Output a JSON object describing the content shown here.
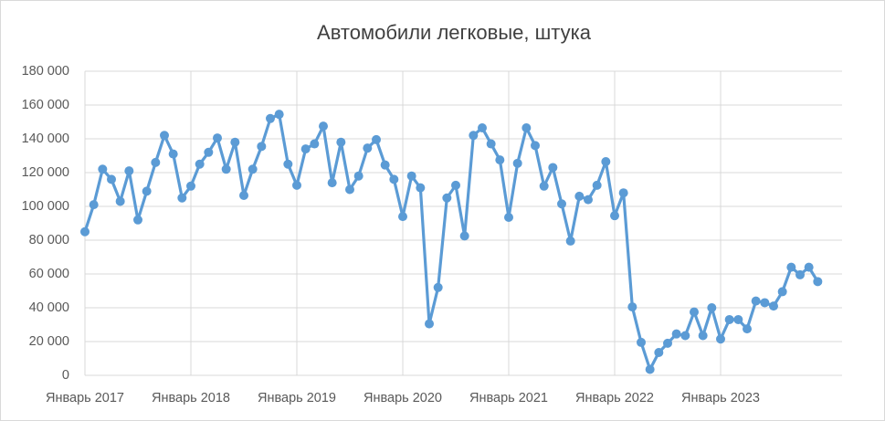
{
  "chart_data": {
    "type": "line",
    "title": "Автомобили легковые, штука",
    "categories": [
      "Январь 2017",
      null,
      null,
      null,
      null,
      null,
      null,
      null,
      null,
      null,
      null,
      null,
      "Январь 2018",
      null,
      null,
      null,
      null,
      null,
      null,
      null,
      null,
      null,
      null,
      null,
      "Январь 2019",
      null,
      null,
      null,
      null,
      null,
      null,
      null,
      null,
      null,
      null,
      null,
      "Январь 2020",
      null,
      null,
      null,
      null,
      null,
      null,
      null,
      null,
      null,
      null,
      null,
      "Январь 2021",
      null,
      null,
      null,
      null,
      null,
      null,
      null,
      null,
      null,
      null,
      null,
      "Январь 2022",
      null,
      null,
      null,
      null,
      null,
      null,
      null,
      null,
      null,
      null,
      null,
      "Январь 2023",
      null,
      null,
      null,
      null,
      null,
      null,
      null,
      null,
      null,
      null,
      null
    ],
    "values": [
      85000,
      101000,
      122000,
      116000,
      103000,
      121000,
      92000,
      109000,
      126000,
      142000,
      131000,
      105000,
      112000,
      125000,
      132000,
      140500,
      122000,
      138000,
      106500,
      122000,
      135500,
      152000,
      154500,
      125000,
      112500,
      134000,
      137000,
      147500,
      114000,
      138000,
      110000,
      118000,
      134500,
      139500,
      124500,
      116000,
      94000,
      118000,
      111000,
      30500,
      52000,
      105000,
      112500,
      82500,
      142000,
      146500,
      137000,
      127500,
      93500,
      125500,
      146500,
      136000,
      112000,
      123000,
      101500,
      79500,
      106000,
      104000,
      112500,
      126500,
      94500,
      108000,
      40500,
      19500,
      3500,
      13500,
      19000,
      24500,
      23500,
      37500,
      23500,
      40000,
      21500,
      33000,
      33000,
      27500,
      44000,
      43000,
      41000,
      49500,
      64000,
      59500,
      64000,
      55500
    ],
    "color": "#5b9bd5",
    "ylim": [
      0,
      180000
    ],
    "yticks": [
      0,
      {
        "value": 20000,
        "label": "20 000"
      },
      {
        "value": 40000,
        "label": "40 000"
      },
      {
        "value": 60000,
        "label": "60 000"
      },
      {
        "value": 80000,
        "label": "80 000"
      },
      {
        "value": 100000,
        "label": "100 000"
      },
      {
        "value": 120000,
        "label": "120 000"
      },
      {
        "value": 140000,
        "label": "140 000"
      },
      {
        "value": 160000,
        "label": "160 000"
      },
      {
        "value": 180000,
        "label": "180 000"
      }
    ],
    "grid": true
  }
}
